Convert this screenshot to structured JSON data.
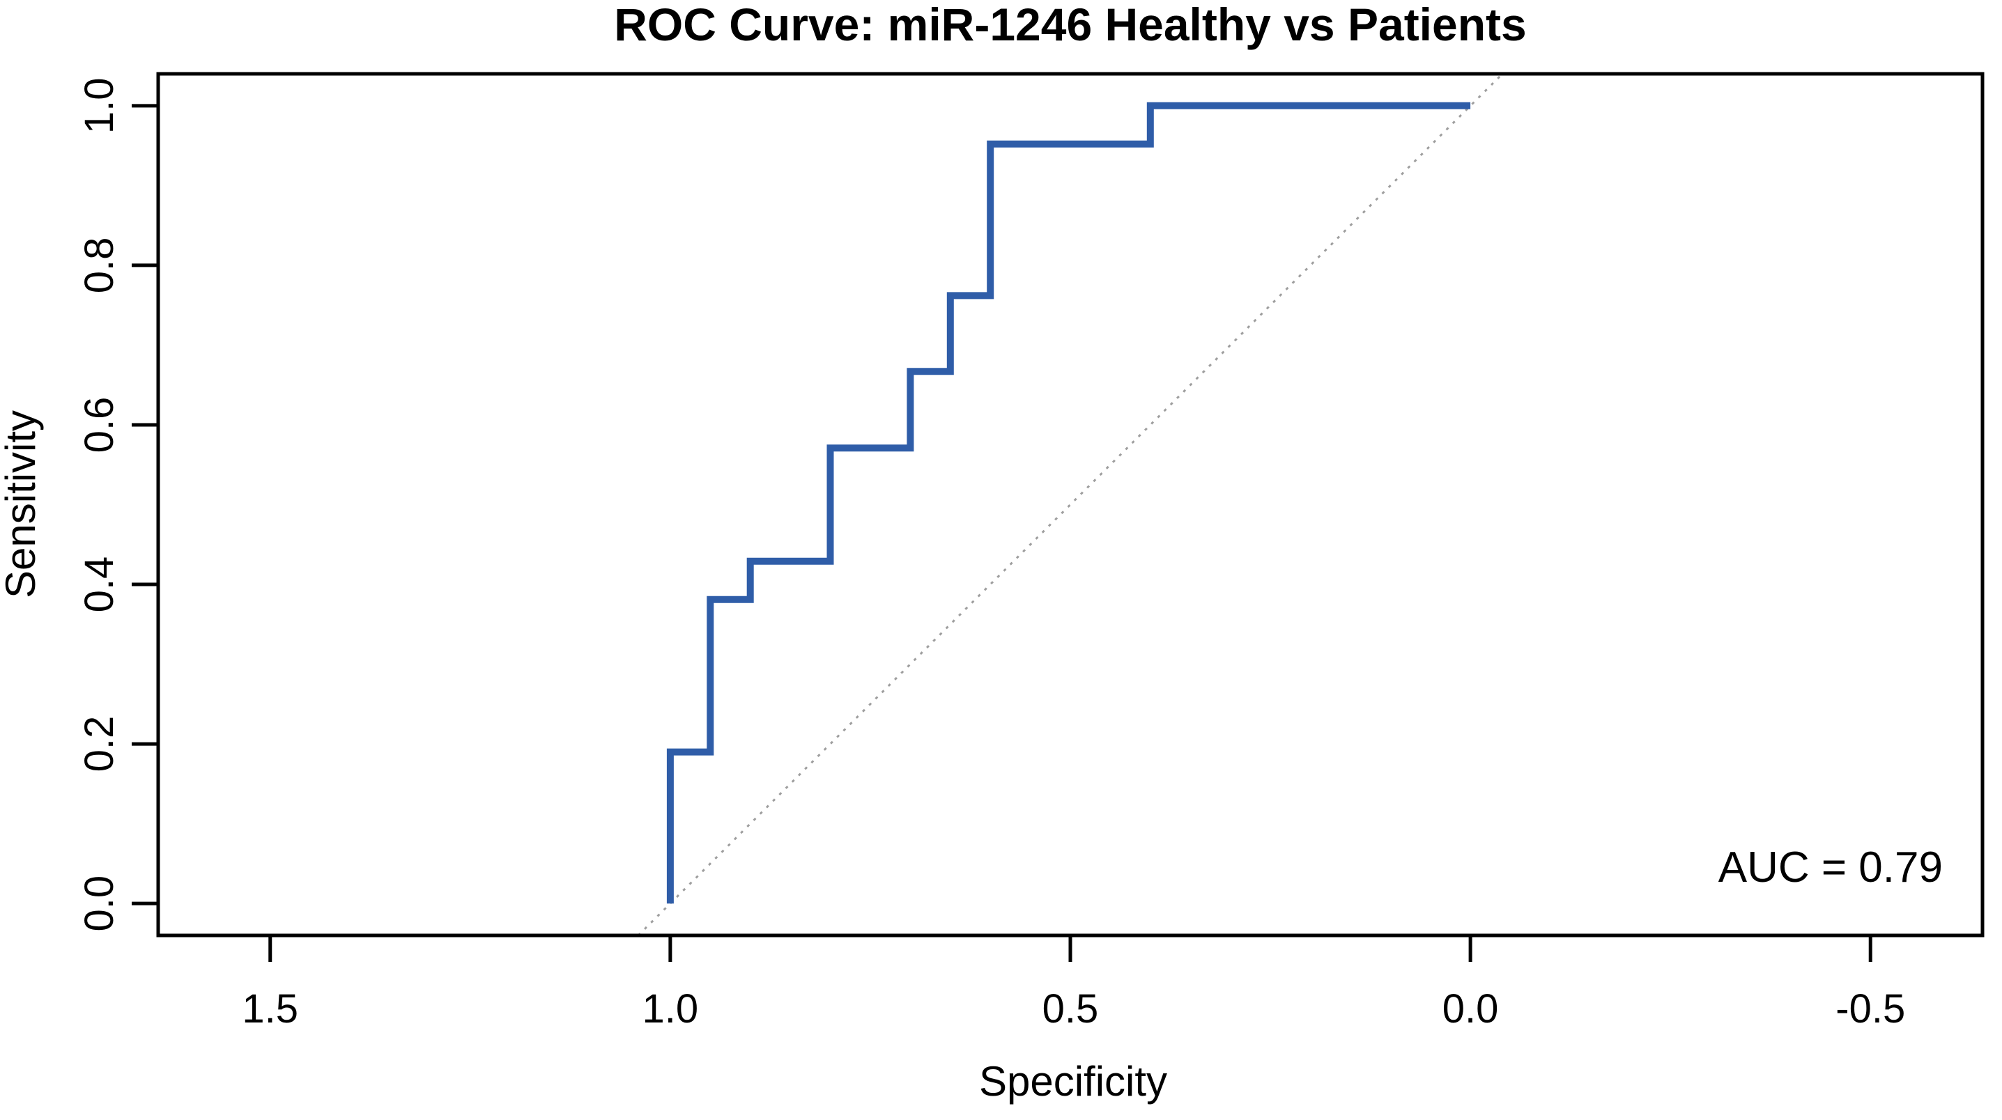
{
  "chart_data": {
    "type": "line",
    "title": "ROC Curve: miR-1246 Healthy vs Patients",
    "xlabel": "Specificity",
    "ylabel": "Sensitivity",
    "grid": false,
    "legend": "none",
    "background_color": "#FFFFFF",
    "axis_color": "#000000",
    "text_color": "#000000",
    "x_axis": {
      "ticks": [
        1.5,
        1.0,
        0.5,
        0.0,
        -0.5
      ],
      "tick_labels": [
        "1.5",
        "1.0",
        "0.5",
        "0.0",
        "-0.5"
      ],
      "range_left_to_right": [
        1.64,
        -0.64
      ],
      "reversed": true
    },
    "y_axis": {
      "ticks": [
        0.0,
        0.2,
        0.4,
        0.6,
        0.8,
        1.0
      ],
      "tick_labels": [
        "0.0",
        "0.2",
        "0.4",
        "0.6",
        "0.8",
        "1.0"
      ],
      "range_bottom_to_top": [
        -0.04,
        1.04
      ]
    },
    "series": [
      {
        "name": "ROC curve miR-1246",
        "style": "step-line",
        "color": "#2F5DA8",
        "line_width": 10,
        "points_spec_sens": [
          [
            1.0,
            0.0
          ],
          [
            1.0,
            0.19
          ],
          [
            0.95,
            0.19
          ],
          [
            0.95,
            0.381
          ],
          [
            0.9,
            0.381
          ],
          [
            0.9,
            0.429
          ],
          [
            0.8,
            0.429
          ],
          [
            0.8,
            0.571
          ],
          [
            0.7,
            0.571
          ],
          [
            0.7,
            0.667
          ],
          [
            0.65,
            0.667
          ],
          [
            0.65,
            0.762
          ],
          [
            0.6,
            0.762
          ],
          [
            0.6,
            0.952
          ],
          [
            0.4,
            0.952
          ],
          [
            0.4,
            1.0
          ],
          [
            0.0,
            1.0
          ]
        ]
      },
      {
        "name": "chance diagonal",
        "style": "dotted-line",
        "color": "#9E9E9E",
        "line_width": 3,
        "points_spec_sens": [
          [
            1.04,
            -0.04
          ],
          [
            -0.04,
            1.04
          ]
        ]
      }
    ],
    "annotation": {
      "text": "AUC = 0.79",
      "x": -0.45,
      "y": 0.045
    },
    "auc": 0.79
  }
}
